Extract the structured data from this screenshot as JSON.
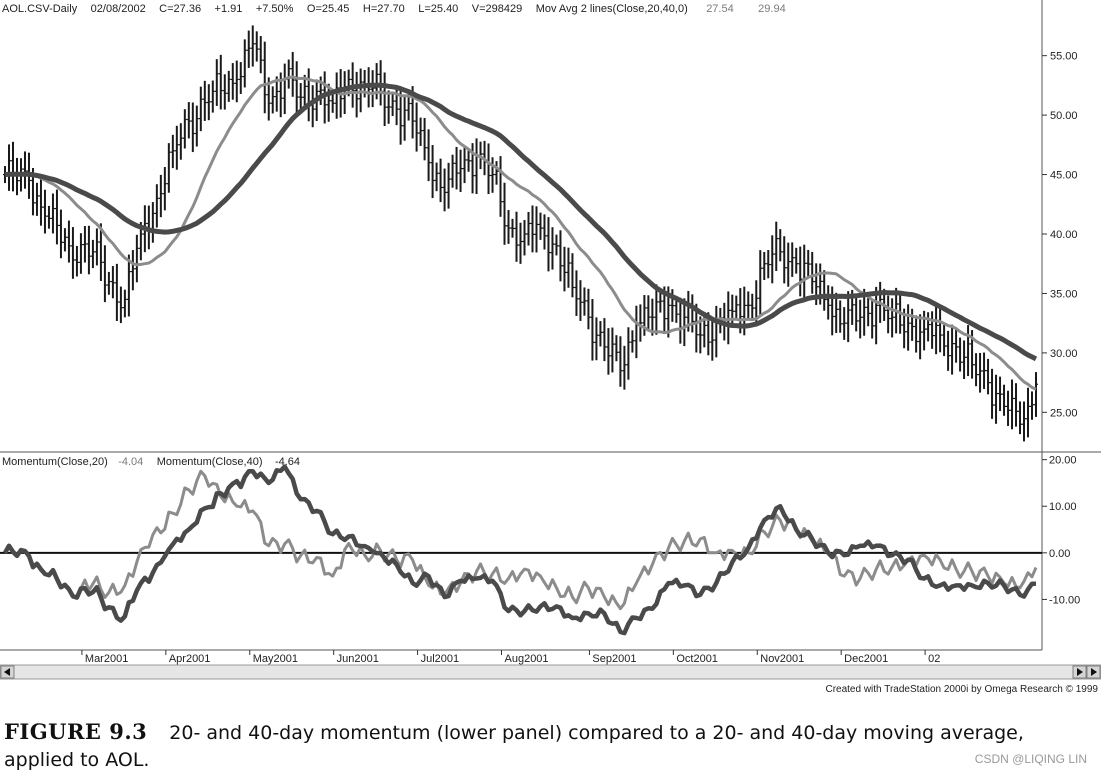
{
  "figure": {
    "label": "FIGURE 9.3",
    "caption": "20- and 40-day momentum (lower panel) compared to a 20- and 40-day moving average, applied to AOL.",
    "watermark": "CSDN @LIQING LIN",
    "credit": "Created with TradeStation 2000i by Omega Research © 1999"
  },
  "header": {
    "symbol": "AOL.CSV-Daily",
    "date": "02/08/2002",
    "close": "C=27.36",
    "change": "+1.91",
    "change_pct": "+7.50%",
    "open": "O=25.45",
    "high": "H=27.70",
    "low": "L=25.40",
    "volume": "V=298429",
    "indicator": "Mov Avg 2 lines(Close,20,40,0)",
    "ma20_value": "27.54",
    "ma40_value": "29.94"
  },
  "momentum_header": {
    "label20": "Momentum(Close,20)",
    "value20": "-4.04",
    "label40": "Momentum(Close,40)",
    "value40": "-4.64"
  },
  "colors": {
    "price_bars": "#1a1a1a",
    "ma20": "#8c8c8c",
    "ma40": "#4a4a4a",
    "mom20": "#8c8c8c",
    "mom40": "#4a4a4a",
    "zero_line": "#111111"
  },
  "chart_data": [
    {
      "type": "line",
      "title": "",
      "panel": "price",
      "price_ticks": [
        "55.00",
        "50.00",
        "45.00",
        "40.00",
        "35.00",
        "30.00",
        "25.00"
      ],
      "ylim": [
        22,
        58
      ],
      "x_labels": [
        "Mar2001",
        "Apr2001",
        "May2001",
        "Jun2001",
        "Jul2001",
        "Aug2001",
        "Sep2001",
        "Oct2001",
        "Nov2001",
        "Dec2001",
        "02"
      ],
      "close_keypoints": [
        [
          0,
          45
        ],
        [
          6,
          44.5
        ],
        [
          10,
          41.5
        ],
        [
          16,
          39
        ],
        [
          22,
          38.5
        ],
        [
          26,
          36
        ],
        [
          30,
          34.5
        ],
        [
          34,
          40
        ],
        [
          38,
          43
        ],
        [
          42,
          47
        ],
        [
          46,
          49.5
        ],
        [
          52,
          52
        ],
        [
          58,
          53
        ],
        [
          62,
          56
        ],
        [
          66,
          51
        ],
        [
          70,
          53
        ],
        [
          74,
          51.5
        ],
        [
          78,
          52
        ],
        [
          82,
          51
        ],
        [
          86,
          53
        ],
        [
          90,
          52.5
        ],
        [
          94,
          52
        ],
        [
          98,
          50.5
        ],
        [
          102,
          49.5
        ],
        [
          106,
          46
        ],
        [
          110,
          43.5
        ],
        [
          114,
          45.5
        ],
        [
          118,
          46.5
        ],
        [
          122,
          45
        ],
        [
          126,
          40.5
        ],
        [
          130,
          40
        ],
        [
          134,
          40.5
        ],
        [
          138,
          39
        ],
        [
          142,
          35.5
        ],
        [
          146,
          33
        ],
        [
          150,
          30.5
        ],
        [
          154,
          28.5
        ],
        [
          158,
          32.5
        ],
        [
          162,
          33
        ],
        [
          166,
          34
        ],
        [
          170,
          33
        ],
        [
          174,
          31.5
        ],
        [
          178,
          32.5
        ],
        [
          182,
          33.5
        ],
        [
          186,
          34
        ],
        [
          190,
          37.5
        ],
        [
          194,
          38.5
        ],
        [
          198,
          37.5
        ],
        [
          202,
          36
        ],
        [
          206,
          34
        ],
        [
          210,
          32.5
        ],
        [
          214,
          33
        ],
        [
          218,
          34
        ],
        [
          222,
          33
        ],
        [
          226,
          32.5
        ],
        [
          230,
          32
        ],
        [
          234,
          31.5
        ],
        [
          238,
          30.5
        ],
        [
          242,
          29
        ],
        [
          246,
          27.5
        ],
        [
          250,
          25.5
        ],
        [
          254,
          24
        ],
        [
          256,
          25.5
        ],
        [
          258,
          27.36
        ]
      ],
      "series": [
        {
          "name": "Mov Avg 2 lines(Close,20,40,0) 20",
          "period": 20,
          "last": 27.54
        },
        {
          "name": "Mov Avg 2 lines(Close,20,40,0) 40",
          "period": 40,
          "last": 29.94
        }
      ]
    },
    {
      "type": "line",
      "title": "",
      "panel": "momentum",
      "momentum_ticks": [
        "20.00",
        "10.00",
        "0.00",
        "-10.00"
      ],
      "ylim": [
        -20,
        21
      ],
      "series": [
        {
          "name": "Momentum(Close,20)",
          "period": 20,
          "last": -4.04
        },
        {
          "name": "Momentum(Close,40)",
          "period": 40,
          "last": -4.64
        }
      ]
    }
  ]
}
